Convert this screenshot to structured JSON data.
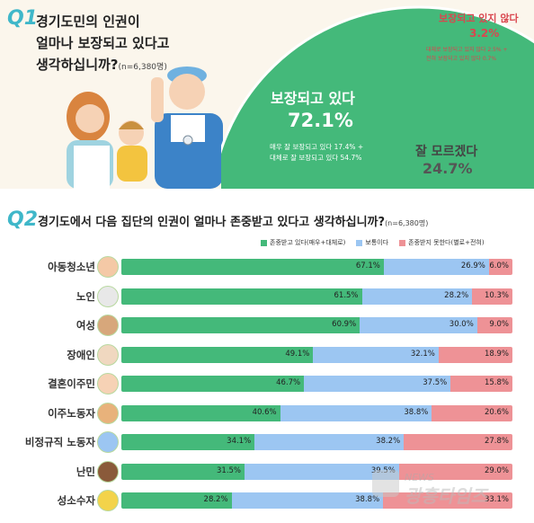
{
  "q1": {
    "number": "Q1",
    "title_line1": "경기도민의 인권이",
    "title_line2": "얼마나 보장되고 있다고",
    "title_line3": "생각하십니까?",
    "sample": "(n=6,380명)",
    "guaranteed_label": "보장되고 있다",
    "guaranteed_value": "72.1%",
    "guaranteed_detail1": "매우 잘 보장되고 있다 17.4% +",
    "guaranteed_detail2": "대체로 잘 보장되고 있다 54.7%",
    "not_guaranteed_label": "보장되고 있지 않다",
    "not_guaranteed_value": "3.2%",
    "not_guaranteed_detail1": "대체로 보장되고 있지 않다 2.5% +",
    "not_guaranteed_detail2": "전혀 보장되고 있지 않다 0.7%",
    "unknown_label": "잘 모르겠다",
    "unknown_value": "24.7%"
  },
  "q2": {
    "number": "Q2",
    "title": "경기도에서 다음 집단의 인권이 얼마나 존중받고 있다고 생각하십니까?",
    "sample": "(n=6,380명)",
    "legend": [
      "존중받고 있다(매우+대체로)",
      "보통이다",
      "존중받지 못한다(별로+전혀)"
    ]
  },
  "colors": {
    "respected": "#44b97a",
    "neutral": "#9cc6f2",
    "not_respected": "#ee9296",
    "accent": "#3fb7c9",
    "pie_unknown": "#e3e3e3",
    "pie_not": "#e46a72"
  },
  "chart_data": [
    {
      "type": "pie",
      "labels": [
        "보장되고 있다",
        "보장되고 있지 않다",
        "잘 모르겠다"
      ],
      "values": [
        72.1,
        3.2,
        24.7
      ]
    },
    {
      "type": "bar",
      "stacked": true,
      "orientation": "horizontal",
      "categories": [
        "아동청소년",
        "노인",
        "여성",
        "장애인",
        "결혼이주민",
        "이주노동자",
        "비정규직 노동자",
        "난민",
        "성소수자"
      ],
      "series": [
        {
          "name": "존중받고 있다(매우+대체로)",
          "values": [
            67.1,
            61.5,
            60.9,
            49.1,
            46.7,
            40.6,
            34.1,
            31.5,
            28.2
          ]
        },
        {
          "name": "보통이다",
          "values": [
            26.9,
            28.2,
            30.0,
            32.1,
            37.5,
            38.8,
            38.2,
            39.5,
            38.8
          ]
        },
        {
          "name": "존중받지 못한다(별로+전혀)",
          "values": [
            6.0,
            10.3,
            9.0,
            18.9,
            15.8,
            20.6,
            27.8,
            29.0,
            33.1
          ]
        }
      ],
      "value_labels": [
        [
          "67.1%",
          "26.9%",
          "6.0%"
        ],
        [
          "61.5%",
          "28.2%",
          "10.3%"
        ],
        [
          "60.9%",
          "30.0%",
          "9.0%"
        ],
        [
          "49.1%",
          "32.1%",
          "18.9%"
        ],
        [
          "46.7%",
          "37.5%",
          "15.8%"
        ],
        [
          "40.6%",
          "38.8%",
          "20.6%"
        ],
        [
          "34.1%",
          "38.2%",
          "27.8%"
        ],
        [
          "31.5%",
          "39.5%",
          "29.0%"
        ],
        [
          "28.2%",
          "38.8%",
          "33.1%"
        ]
      ]
    }
  ]
}
